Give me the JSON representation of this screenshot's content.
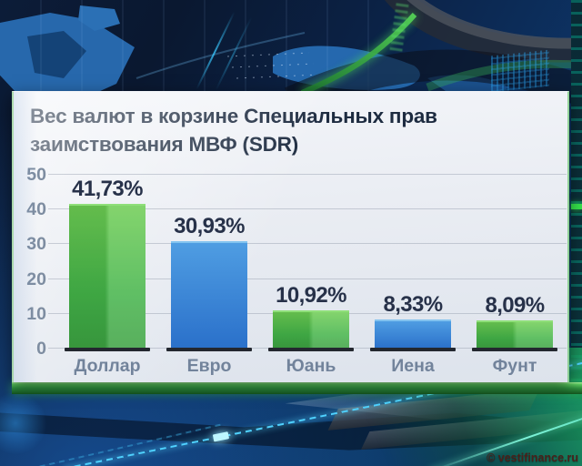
{
  "panel": {
    "title_line1": "Вес валют в корзине Специальных прав",
    "title_line2": "заимствования МВФ (SDR)"
  },
  "footer": {
    "copyright": "© vestifinance.ru"
  },
  "chart_data": {
    "type": "bar",
    "title": "Вес валют в корзине Специальных прав заимствования МВФ (SDR)",
    "categories": [
      "Доллар",
      "Евро",
      "Юань",
      "Иена",
      "Фунт"
    ],
    "values": [
      41.73,
      30.93,
      10.92,
      8.33,
      8.09
    ],
    "value_labels": [
      "41,73%",
      "30,93%",
      "10,92%",
      "8,33%",
      "8,09%"
    ],
    "bar_colors": [
      "green",
      "blue",
      "green",
      "blue",
      "green"
    ],
    "xlabel": "",
    "ylabel": "",
    "ylim": [
      0,
      50
    ],
    "yticks": [
      0,
      10,
      20,
      30,
      40,
      50
    ],
    "grid": true,
    "legend": false
  },
  "colors": {
    "bar_green_left": "#46b54b",
    "bar_green_right": "#6fcd55",
    "bar_green_edge": "#8fdf79",
    "bar_blue_top": "#4f9de2",
    "bar_blue_bottom": "#2a70ca",
    "bar_blue_edge": "#83c3ef",
    "bar_base": "#23272f",
    "title_text": "#1d2b40",
    "value_text": "#273149",
    "axis_text": "#7e8da1",
    "category_text": "#72839b",
    "panel_top": "#f3f5f9",
    "panel_bottom": "#dde3ec",
    "divider_green": "#2f9140",
    "copyright_text": "#49201a"
  }
}
